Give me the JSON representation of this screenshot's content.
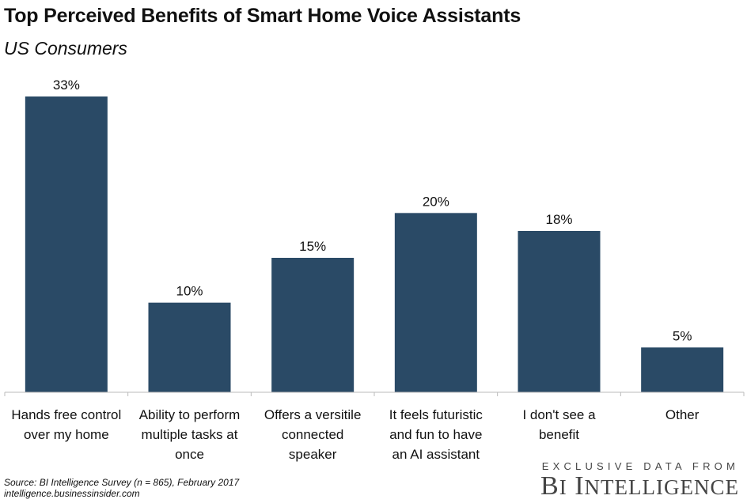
{
  "chart_data": {
    "type": "bar",
    "title": "Top Perceived Benefits of Smart Home Voice Assistants",
    "subtitle": "US Consumers",
    "categories": [
      [
        "Hands free control",
        "over my home"
      ],
      [
        "Ability to perform",
        "multiple tasks at",
        "once"
      ],
      [
        "Offers a versitile",
        "connected",
        "speaker"
      ],
      [
        "It feels futuristic",
        "and fun to have",
        "an AI assistant"
      ],
      [
        "I don't see a",
        "benefit"
      ],
      [
        "Other"
      ]
    ],
    "values": [
      33,
      10,
      15,
      20,
      18,
      5
    ],
    "value_labels": [
      "33%",
      "10%",
      "15%",
      "20%",
      "18%",
      "5%"
    ],
    "unit": "%",
    "ylim": [
      0,
      33
    ],
    "grid": false,
    "bar_color": "#2a4a66"
  },
  "source": {
    "line1": "Source: BI Intelligence Survey (n = 865), February 2017",
    "line2": "intelligence.businessinsider.com"
  },
  "brand": {
    "tagline": "EXCLUSIVE DATA FROM",
    "name_b": "B",
    "name_i": "I",
    "name_i2": "I",
    "name_rest": "NTELLIGENCE"
  }
}
